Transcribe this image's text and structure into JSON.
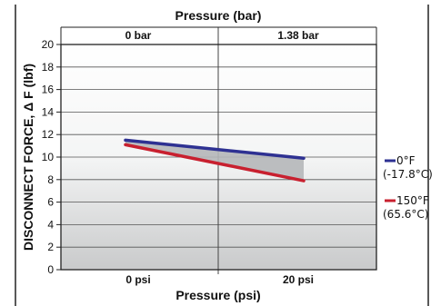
{
  "chart_data": {
    "type": "line",
    "x_bottom_title": "Pressure (psi)",
    "x_top_title": "Pressure (bar)",
    "ylabel": "DISCONNECT FORCE, Δ F (lbf)",
    "x_categories": [
      "0 psi",
      "20 psi"
    ],
    "x_top_categories": [
      "0 bar",
      "1.38 bar"
    ],
    "ylim": [
      0,
      20
    ],
    "yticks": [
      "0",
      "2",
      "4",
      "6",
      "8",
      "10",
      "12",
      "14",
      "16",
      "18",
      "20"
    ],
    "grid": true,
    "legend_position": "right",
    "series": [
      {
        "name": "0°F",
        "name_line2": "(-17.8°C)",
        "color": "#2e3192",
        "values": [
          11.5,
          9.9
        ]
      },
      {
        "name": "150°F",
        "name_line2": "(65.6°C)",
        "color": "#c8202f",
        "values": [
          11.1,
          7.9
        ]
      }
    ]
  }
}
